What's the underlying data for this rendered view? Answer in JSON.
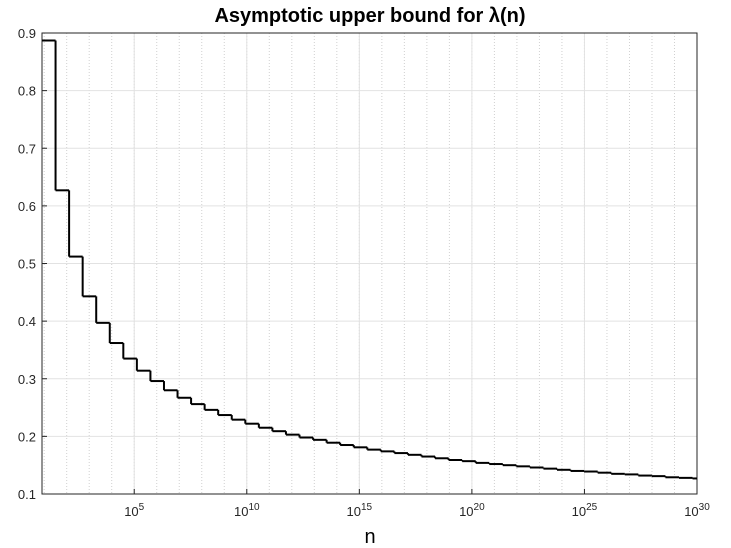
{
  "chart_data": {
    "type": "stairs",
    "title": "Asymptotic upper bound for λ(n)",
    "x_label": "n",
    "log_x": true,
    "grid": true,
    "minor_grid": true,
    "x": [
      8,
      32,
      128,
      512,
      2048,
      8192,
      32768,
      131072,
      524288,
      2097152,
      8388608,
      33554432,
      134217728,
      536870912,
      2147483648,
      8589934592,
      34359738368,
      137438953472,
      549755813888,
      2199023255552,
      8796093022208.0,
      35184372088832.0,
      140737488355328.0,
      562949953421312.0,
      2251799813685248.0,
      9007199254740992.0,
      3.602879701896397e+16,
      1.4411518807585587e+17,
      5.764607523034235e+17,
      2.305843009213694e+18,
      9.223372036854776e+18,
      3.6893488147419103e+19,
      1.4757395258967641e+20,
      5.902958103587057e+20,
      2.3611832414348226e+21,
      9.44473296573929e+21,
      3.777893186295716e+22,
      1.5111572745182865e+23,
      6.044629098073146e+23,
      2.4178516392292583e+24,
      9.671406556917033e+24,
      3.8685626227668134e+25,
      1.5474250491067253e+26,
      6.189700196426902e+26,
      2.4758800785707605e+27,
      9.903520314283042e+27,
      3.961408125713217e+28,
      1.5845632502852868e+29,
      6.338253001141147e+29
    ],
    "series": [
      {
        "color": "#000000",
        "values": [
          0.887,
          0.627,
          0.512,
          0.443,
          0.397,
          0.362,
          0.335,
          0.314,
          0.296,
          0.28,
          0.267,
          0.256,
          0.246,
          0.237,
          0.229,
          0.222,
          0.215,
          0.209,
          0.203,
          0.198,
          0.194,
          0.189,
          0.185,
          0.181,
          0.177,
          0.174,
          0.171,
          0.168,
          0.165,
          0.162,
          0.159,
          0.157,
          0.154,
          0.152,
          0.15,
          0.148,
          0.146,
          0.144,
          0.142,
          0.14,
          0.139,
          0.137,
          0.135,
          0.134,
          0.132,
          0.131,
          0.129,
          0.128,
          0.127
        ]
      }
    ],
    "xlim": [
      8,
      1e+30
    ],
    "xticks": [
      {
        "value": 100000.0,
        "label": "10^5"
      },
      {
        "value": 10000000000.0,
        "label": "10^10"
      },
      {
        "value": 1000000000000000.0,
        "label": "10^15"
      },
      {
        "value": 1e+20,
        "label": "10^20"
      },
      {
        "value": 1e+25,
        "label": "10^25"
      },
      {
        "value": 1e+30,
        "label": "10^30"
      }
    ],
    "ylim": [
      0.1,
      0.9
    ],
    "yticks": [
      0.1,
      0.2,
      0.3,
      0.4,
      0.5,
      0.6,
      0.7,
      0.8,
      0.9
    ]
  }
}
